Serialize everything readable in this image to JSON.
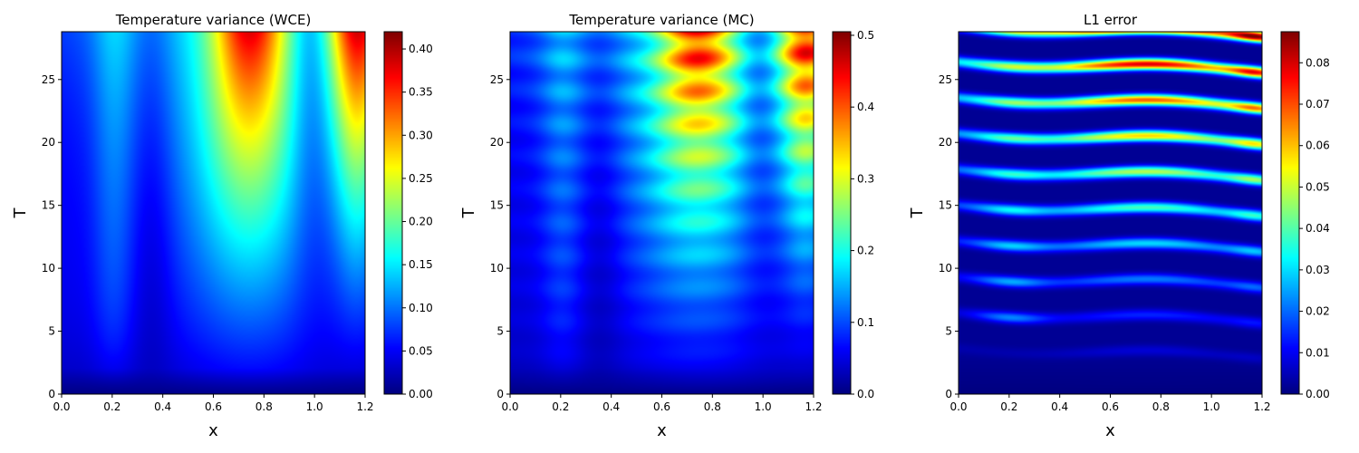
{
  "chart_data": [
    {
      "type": "heatmap",
      "title": "Temperature variance (WCE)",
      "xlabel": "x",
      "ylabel": "T",
      "xlim": [
        0.0,
        1.2
      ],
      "ylim": [
        0,
        28.8
      ],
      "x_ticks": [
        "0.0",
        "0.2",
        "0.4",
        "0.6",
        "0.8",
        "1.0",
        "1.2"
      ],
      "y_ticks": [
        "0",
        "5",
        "10",
        "15",
        "20",
        "25"
      ],
      "colormap": "jet",
      "colorbar": {
        "range": [
          0.0,
          0.42
        ],
        "ticks": [
          "0.00",
          "0.05",
          "0.10",
          "0.15",
          "0.20",
          "0.25",
          "0.30",
          "0.35",
          "0.40"
        ]
      },
      "pattern": "smooth"
    },
    {
      "type": "heatmap",
      "title": "Temperature variance (MC)",
      "xlabel": "x",
      "ylabel": "T",
      "xlim": [
        0.0,
        1.2
      ],
      "ylim": [
        0,
        28.8
      ],
      "x_ticks": [
        "0.0",
        "0.2",
        "0.4",
        "0.6",
        "0.8",
        "1.0",
        "1.2"
      ],
      "y_ticks": [
        "0",
        "5",
        "10",
        "15",
        "20",
        "25"
      ],
      "colormap": "jet",
      "colorbar": {
        "range": [
          0.0,
          0.505
        ],
        "ticks": [
          "0.0",
          "0.1",
          "0.2",
          "0.3",
          "0.4",
          "0.5"
        ]
      },
      "pattern": "banded"
    },
    {
      "type": "heatmap",
      "title": "L1 error",
      "xlabel": "x",
      "ylabel": "T",
      "xlim": [
        0.0,
        1.2
      ],
      "ylim": [
        0,
        28.8
      ],
      "x_ticks": [
        "0.0",
        "0.2",
        "0.4",
        "0.6",
        "0.8",
        "1.0",
        "1.2"
      ],
      "y_ticks": [
        "0",
        "5",
        "10",
        "15",
        "20",
        "25"
      ],
      "colormap": "jet",
      "colorbar": {
        "range": [
          0.0,
          0.0875
        ],
        "ticks": [
          "0.00",
          "0.01",
          "0.02",
          "0.03",
          "0.04",
          "0.05",
          "0.06",
          "0.07",
          "0.08"
        ]
      },
      "pattern": "error"
    }
  ]
}
